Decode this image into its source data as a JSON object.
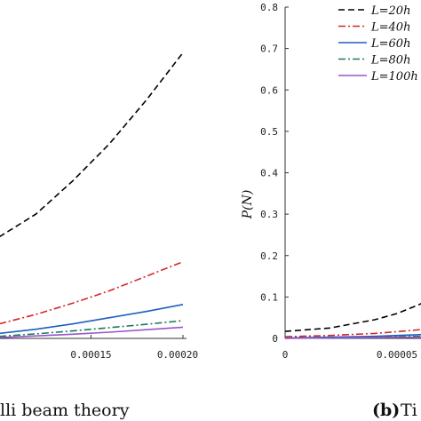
{
  "chart_data": [
    {
      "type": "line",
      "panel": "a (cropped)",
      "caption": "lli beam theory",
      "x_tick_labels": [
        "0.00015",
        "0.00020"
      ],
      "x": [
        0.0001,
        0.00012,
        0.00014,
        0.00016,
        0.00018,
        0.0002
      ],
      "series": [
        {
          "name": "L=20h",
          "color": "#000000",
          "style": "dashed",
          "values": [
            0.245,
            0.3,
            0.38,
            0.47,
            0.575,
            0.69
          ]
        },
        {
          "name": "L=40h",
          "color": "#d62728",
          "style": "dash-dot",
          "values": [
            0.035,
            0.058,
            0.085,
            0.115,
            0.15,
            0.185
          ]
        },
        {
          "name": "L=60h",
          "color": "#1f5fbf",
          "style": "solid",
          "values": [
            0.012,
            0.022,
            0.035,
            0.05,
            0.065,
            0.082
          ]
        },
        {
          "name": "L=80h",
          "color": "#1a7a5a",
          "style": "dash-dot",
          "values": [
            0.005,
            0.011,
            0.018,
            0.026,
            0.034,
            0.043
          ]
        },
        {
          "name": "L=100h",
          "color": "#9a55c8",
          "style": "solid",
          "values": [
            0.002,
            0.006,
            0.01,
            0.015,
            0.021,
            0.027
          ]
        }
      ]
    },
    {
      "type": "line",
      "panel": "b (cropped)",
      "caption_label": "(b)",
      "caption_text": "Ti",
      "ylabel": "P(N)",
      "ylim": [
        0,
        0.8
      ],
      "y_tick_labels": [
        "0",
        "0.1",
        "0.2",
        "0.3",
        "0.4",
        "0.5",
        "0.6",
        "0.7",
        "0.8"
      ],
      "x_tick_labels": [
        "0",
        "0.00005"
      ],
      "x": [
        0,
        2e-05,
        4e-05,
        5e-05,
        6e-05,
        7e-05
      ],
      "legend": {
        "placement": "top-right",
        "entries": [
          "L=20h",
          "L=40h",
          "L=60h",
          "L=80h",
          "L=100h"
        ]
      },
      "series": [
        {
          "name": "L=20h",
          "color": "#000000",
          "style": "dashed",
          "values": [
            0.017,
            0.025,
            0.045,
            0.06,
            0.082,
            0.11
          ]
        },
        {
          "name": "L=40h",
          "color": "#d62728",
          "style": "dash-dot",
          "values": [
            0.004,
            0.007,
            0.012,
            0.016,
            0.021,
            0.027
          ]
        },
        {
          "name": "L=60h",
          "color": "#1f5fbf",
          "style": "solid",
          "values": [
            0.001,
            0.003,
            0.005,
            0.007,
            0.009,
            0.012
          ]
        },
        {
          "name": "L=80h",
          "color": "#1a7a5a",
          "style": "dash-dot",
          "values": [
            0.0005,
            0.0015,
            0.003,
            0.004,
            0.005,
            0.007
          ]
        },
        {
          "name": "L=100h",
          "color": "#9a55c8",
          "style": "solid",
          "values": [
            0.0002,
            0.001,
            0.002,
            0.0025,
            0.003,
            0.004
          ]
        }
      ]
    }
  ]
}
